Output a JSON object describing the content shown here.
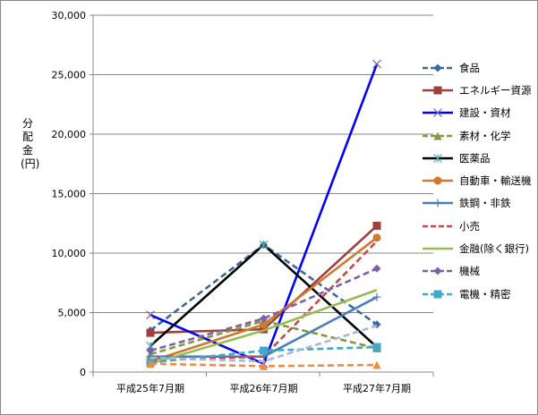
{
  "chart_data": {
    "type": "line",
    "title": "",
    "xlabel": "",
    "ylabel": "分配金(円)",
    "categories": [
      "平成25年7月期",
      "平成26年7月期",
      "平成27年7月期"
    ],
    "ylim": [
      0,
      30000
    ],
    "yticks": [
      "0",
      "5,000",
      "10,000",
      "15,000",
      "20,000",
      "25,000",
      "30,000"
    ],
    "grid": true,
    "legend": "right",
    "series": [
      {
        "name": "食品",
        "values": [
          3500,
          10700,
          4000
        ],
        "color": "#3a6aa0",
        "dash": true,
        "marker": "diamond"
      },
      {
        "name": "エネルギー資源",
        "values": [
          3300,
          3600,
          12300
        ],
        "color": "#a0403c",
        "dash": false,
        "marker": "square"
      },
      {
        "name": "建設・資材",
        "values": [
          4800,
          700,
          25900
        ],
        "color": "#0000ff",
        "dash": false,
        "marker": "x"
      },
      {
        "name": "素材・化学",
        "values": [
          1500,
          4300,
          2000
        ],
        "color": "#7f9a40",
        "dash": true,
        "marker": "triangle"
      },
      {
        "name": "医薬品",
        "values": [
          2200,
          10700,
          2100
        ],
        "color": "#000000",
        "dash": false,
        "marker": "star"
      },
      {
        "name": "自動車・輸送機",
        "values": [
          900,
          4000,
          11300
        ],
        "color": "#d07830",
        "dash": false,
        "marker": "circle"
      },
      {
        "name": "鉄鋼・非鉄",
        "values": [
          1300,
          1300,
          6300
        ],
        "color": "#4a7ebb",
        "dash": false,
        "marker": "plus"
      },
      {
        "name": "小売",
        "values": [
          1000,
          1300,
          11000
        ],
        "color": "#c84848",
        "dash": true,
        "marker": "none"
      },
      {
        "name": "金融(除く銀行)",
        "values": [
          700,
          3500,
          6900
        ],
        "color": "#98bb50",
        "dash": false,
        "marker": "none"
      },
      {
        "name": "機械",
        "values": [
          1800,
          4500,
          8700
        ],
        "color": "#7f60a8",
        "dash": true,
        "marker": "diamond"
      },
      {
        "name": "電機・精密",
        "values": [
          800,
          1800,
          2100
        ],
        "color": "#40a8c8",
        "dash": true,
        "marker": "square"
      },
      {
        "name": "",
        "values": [
          1200,
          900,
          3900
        ],
        "color": "#a8b8d8",
        "dash": true,
        "marker": "none"
      },
      {
        "name": "",
        "values": [
          700,
          500,
          600
        ],
        "color": "#f08c40",
        "dash": true,
        "marker": "triangle"
      }
    ]
  }
}
